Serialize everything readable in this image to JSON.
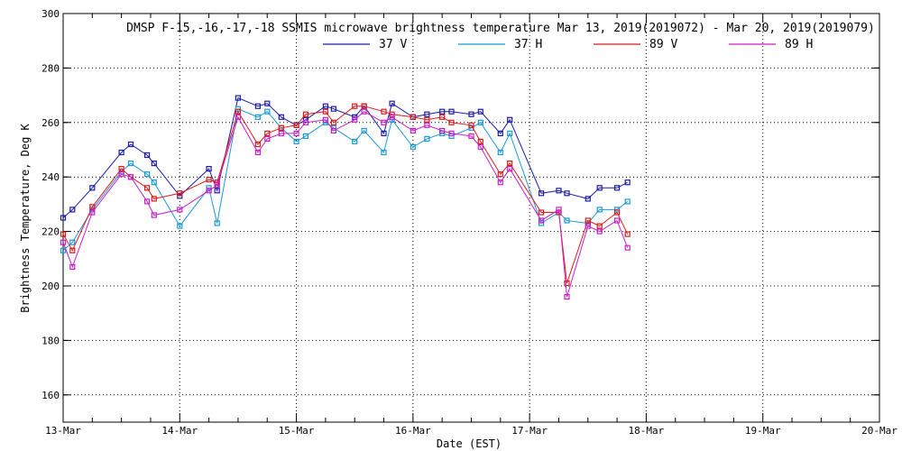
{
  "chart_data": {
    "type": "line",
    "title": "DMSP F-15,-16,-17,-18 SSMIS microwave brightness temperature Mar 13, 2019(2019072) - Mar 20, 2019(2019079)",
    "xlabel": "Date (EST)",
    "ylabel": "Brightness Temperature, Deg K",
    "xlim": [
      0,
      7
    ],
    "ylim": [
      150,
      300
    ],
    "x_ticks": [
      {
        "value": 0,
        "label": "13-Mar"
      },
      {
        "value": 1,
        "label": "14-Mar"
      },
      {
        "value": 2,
        "label": "15-Mar"
      },
      {
        "value": 3,
        "label": "16-Mar"
      },
      {
        "value": 4,
        "label": "17-Mar"
      },
      {
        "value": 5,
        "label": "18-Mar"
      },
      {
        "value": 6,
        "label": "19-Mar"
      },
      {
        "value": 7,
        "label": "20-Mar"
      }
    ],
    "y_ticks": [
      160,
      180,
      200,
      220,
      240,
      260,
      280,
      300
    ],
    "grid": true,
    "legend_position": "top-center",
    "series": [
      {
        "name": "37 V",
        "color": "#1a1aaa",
        "x": [
          0.0,
          0.08,
          0.25,
          0.5,
          0.58,
          0.72,
          0.78,
          1.0,
          1.25,
          1.32,
          1.5,
          1.67,
          1.75,
          1.87,
          2.0,
          2.08,
          2.25,
          2.32,
          2.5,
          2.58,
          2.75,
          2.82,
          3.0,
          3.12,
          3.25,
          3.33,
          3.5,
          3.58,
          3.75,
          3.83,
          4.1,
          4.25,
          4.32,
          4.5,
          4.6,
          4.75,
          4.84
        ],
        "values": [
          225,
          228,
          236,
          249,
          252,
          248,
          245,
          233,
          243,
          235,
          269,
          266,
          267,
          262,
          259,
          261,
          266,
          265,
          262,
          266,
          256,
          267,
          262,
          263,
          264,
          264,
          263,
          264,
          256,
          261,
          234,
          235,
          234,
          232,
          236,
          236,
          238
        ]
      },
      {
        "name": "37 H",
        "color": "#1a9ad6",
        "x": [
          0.0,
          0.08,
          0.25,
          0.5,
          0.58,
          0.72,
          0.78,
          1.0,
          1.25,
          1.32,
          1.5,
          1.67,
          1.75,
          1.87,
          2.0,
          2.08,
          2.25,
          2.32,
          2.5,
          2.58,
          2.75,
          2.82,
          3.0,
          3.12,
          3.25,
          3.33,
          3.5,
          3.58,
          3.75,
          3.83,
          4.1,
          4.25,
          4.32,
          4.5,
          4.6,
          4.75,
          4.84
        ],
        "values": [
          213,
          216,
          228,
          242,
          245,
          241,
          238,
          222,
          236,
          223,
          265,
          262,
          264,
          258,
          253,
          255,
          260,
          258,
          253,
          257,
          249,
          261,
          251,
          254,
          256,
          255,
          258,
          260,
          249,
          256,
          223,
          227,
          224,
          223,
          228,
          228,
          231
        ]
      },
      {
        "name": "89 V",
        "color": "#dd1a1a",
        "x": [
          0.0,
          0.08,
          0.25,
          0.5,
          0.58,
          0.72,
          0.78,
          1.0,
          1.25,
          1.32,
          1.5,
          1.67,
          1.75,
          1.87,
          2.0,
          2.08,
          2.25,
          2.32,
          2.5,
          2.58,
          2.75,
          2.82,
          3.0,
          3.12,
          3.25,
          3.33,
          3.5,
          3.58,
          3.75,
          3.83,
          4.1,
          4.25,
          4.32,
          4.5,
          4.6,
          4.75,
          4.84
        ],
        "values": [
          219,
          213,
          229,
          243,
          240,
          236,
          232,
          234,
          239,
          238,
          264,
          252,
          256,
          258,
          259,
          263,
          264,
          260,
          266,
          266,
          264,
          263,
          262,
          261,
          262,
          260,
          259,
          253,
          241,
          245,
          227,
          227,
          201,
          224,
          222,
          227,
          219
        ]
      },
      {
        "name": "89 H",
        "color": "#c81ec8",
        "x": [
          0.0,
          0.08,
          0.25,
          0.5,
          0.58,
          0.72,
          0.78,
          1.0,
          1.25,
          1.32,
          1.5,
          1.67,
          1.75,
          1.87,
          2.0,
          2.08,
          2.25,
          2.32,
          2.5,
          2.58,
          2.75,
          2.82,
          3.0,
          3.12,
          3.25,
          3.33,
          3.5,
          3.58,
          3.75,
          3.83,
          4.1,
          4.25,
          4.32,
          4.5,
          4.6,
          4.75,
          4.84
        ],
        "values": [
          216,
          207,
          227,
          241,
          240,
          231,
          226,
          228,
          235,
          237,
          262,
          249,
          254,
          256,
          256,
          260,
          261,
          257,
          261,
          264,
          260,
          262,
          257,
          259,
          257,
          256,
          255,
          251,
          238,
          243,
          224,
          228,
          196,
          222,
          220,
          224,
          214
        ]
      }
    ]
  }
}
